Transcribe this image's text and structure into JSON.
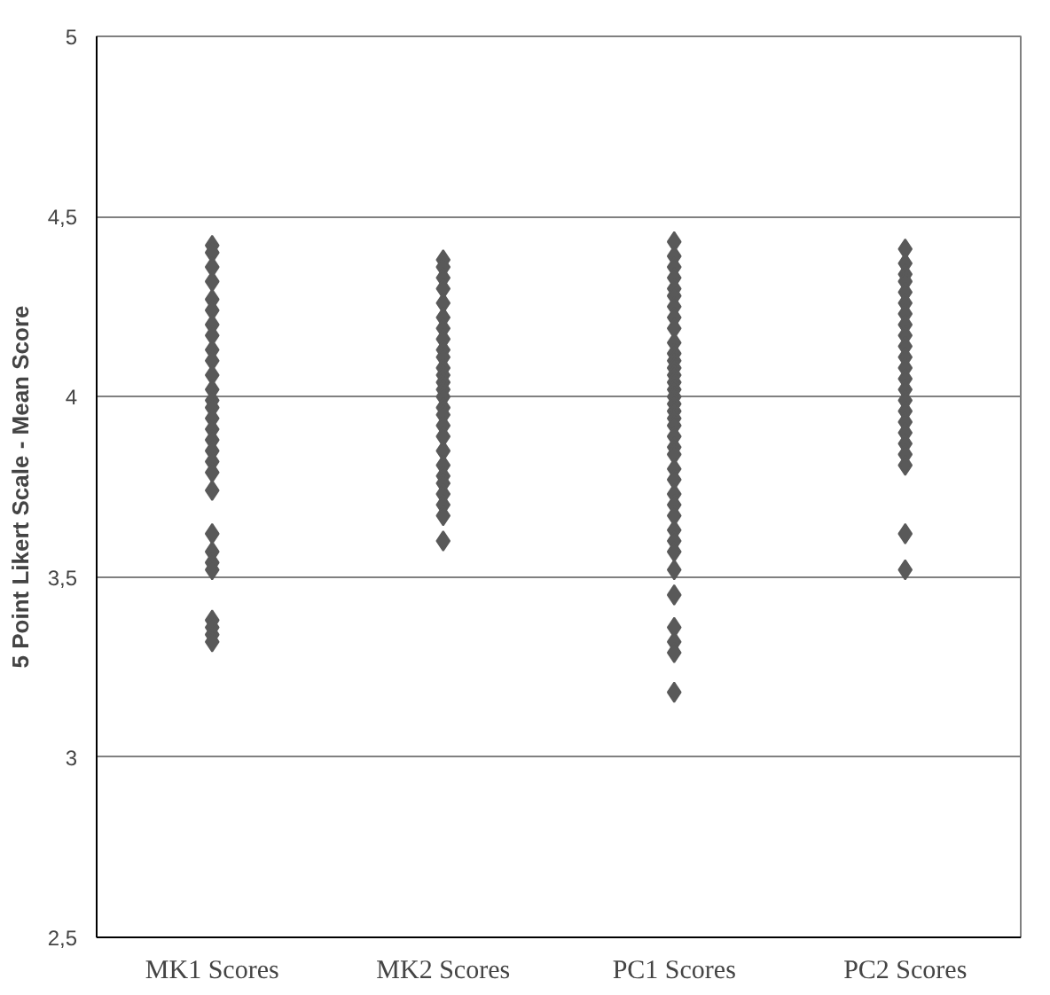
{
  "chart_data": {
    "type": "scatter",
    "ylabel": "5 Point Likert Scale - Mean Score",
    "categories": [
      "MK1 Scores",
      "MK2 Scores",
      "PC1 Scores",
      "PC2 Scores"
    ],
    "series": [
      {
        "color": "#595959",
        "x": [
          "MK1 Scores",
          "MK1 Scores",
          "MK1 Scores",
          "MK1 Scores",
          "MK1 Scores",
          "MK1 Scores",
          "MK1 Scores",
          "MK1 Scores",
          "MK1 Scores",
          "MK1 Scores",
          "MK1 Scores",
          "MK1 Scores",
          "MK1 Scores",
          "MK1 Scores",
          "MK1 Scores",
          "MK1 Scores",
          "MK1 Scores",
          "MK1 Scores",
          "MK1 Scores",
          "MK1 Scores",
          "MK1 Scores",
          "MK1 Scores",
          "MK1 Scores",
          "MK1 Scores",
          "MK1 Scores",
          "MK1 Scores",
          "MK1 Scores",
          "MK1 Scores",
          "MK1 Scores",
          "MK1 Scores"
        ],
        "values": [
          4.42,
          4.4,
          4.36,
          4.32,
          4.27,
          4.24,
          4.2,
          4.17,
          4.13,
          4.1,
          4.06,
          4.02,
          3.99,
          3.97,
          3.94,
          3.91,
          3.88,
          3.85,
          3.82,
          3.79,
          null,
          3.74,
          3.62,
          3.57,
          3.54,
          3.52,
          3.38,
          3.36,
          3.34,
          3.32
        ]
      },
      {
        "color": "#595959",
        "x": [
          "MK2 Scores",
          "MK2 Scores",
          "MK2 Scores",
          "MK2 Scores",
          "MK2 Scores",
          "MK2 Scores",
          "MK2 Scores",
          "MK2 Scores",
          "MK2 Scores",
          "MK2 Scores",
          "MK2 Scores",
          "MK2 Scores",
          "MK2 Scores",
          "MK2 Scores",
          "MK2 Scores",
          "MK2 Scores",
          "MK2 Scores",
          "MK2 Scores",
          "MK2 Scores",
          "MK2 Scores",
          "MK2 Scores",
          "MK2 Scores",
          "MK2 Scores",
          "MK2 Scores",
          "MK2 Scores",
          "MK2 Scores",
          "MK2 Scores"
        ],
        "values": [
          4.38,
          4.36,
          4.33,
          4.3,
          4.26,
          4.22,
          4.19,
          4.16,
          4.13,
          4.11,
          4.08,
          4.06,
          4.04,
          4.02,
          4.0,
          3.97,
          3.95,
          3.92,
          3.89,
          3.85,
          3.81,
          3.78,
          3.76,
          3.73,
          3.7,
          3.67,
          3.6
        ]
      },
      {
        "color": "#595959",
        "x": [
          "PC1 Scores",
          "PC1 Scores",
          "PC1 Scores",
          "PC1 Scores",
          "PC1 Scores",
          "PC1 Scores",
          "PC1 Scores",
          "PC1 Scores",
          "PC1 Scores",
          "PC1 Scores",
          "PC1 Scores",
          "PC1 Scores",
          "PC1 Scores",
          "PC1 Scores",
          "PC1 Scores",
          "PC1 Scores",
          "PC1 Scores",
          "PC1 Scores",
          "PC1 Scores",
          "PC1 Scores",
          "PC1 Scores",
          "PC1 Scores",
          "PC1 Scores",
          "PC1 Scores",
          "PC1 Scores",
          "PC1 Scores",
          "PC1 Scores",
          "PC1 Scores",
          "PC1 Scores",
          "PC1 Scores",
          "PC1 Scores",
          "PC1 Scores",
          "PC1 Scores",
          "PC1 Scores",
          "PC1 Scores",
          "PC1 Scores",
          "PC1 Scores",
          "PC1 Scores"
        ],
        "values": [
          4.43,
          4.39,
          4.36,
          4.33,
          4.3,
          4.28,
          4.25,
          4.22,
          4.19,
          4.15,
          4.12,
          4.1,
          4.08,
          4.06,
          4.04,
          4.02,
          4.0,
          3.98,
          3.96,
          3.94,
          3.92,
          3.89,
          3.86,
          3.84,
          3.8,
          3.77,
          3.73,
          3.7,
          3.67,
          3.63,
          3.6,
          3.57,
          3.52,
          3.45,
          3.36,
          3.32,
          3.29,
          3.18
        ]
      },
      {
        "color": "#595959",
        "x": [
          "PC2 Scores",
          "PC2 Scores",
          "PC2 Scores",
          "PC2 Scores",
          "PC2 Scores",
          "PC2 Scores",
          "PC2 Scores",
          "PC2 Scores",
          "PC2 Scores",
          "PC2 Scores",
          "PC2 Scores",
          "PC2 Scores",
          "PC2 Scores",
          "PC2 Scores",
          "PC2 Scores",
          "PC2 Scores",
          "PC2 Scores",
          "PC2 Scores",
          "PC2 Scores",
          "PC2 Scores",
          "PC2 Scores",
          "PC2 Scores",
          "PC2 Scores"
        ],
        "values": [
          4.41,
          4.37,
          4.34,
          4.32,
          4.29,
          4.26,
          4.23,
          4.2,
          4.17,
          4.14,
          4.11,
          4.08,
          4.05,
          4.02,
          3.99,
          3.96,
          3.93,
          3.9,
          3.87,
          3.84,
          3.81,
          3.62,
          3.52
        ]
      }
    ],
    "ylim": [
      2.5,
      5
    ],
    "yticks": [
      {
        "value": 2.5,
        "label": "2,5"
      },
      3,
      {
        "value": 3.5,
        "label": "3,5"
      },
      4,
      {
        "value": 4.5,
        "label": "4,5"
      },
      5
    ],
    "grid": "y",
    "marker": "diamond"
  }
}
